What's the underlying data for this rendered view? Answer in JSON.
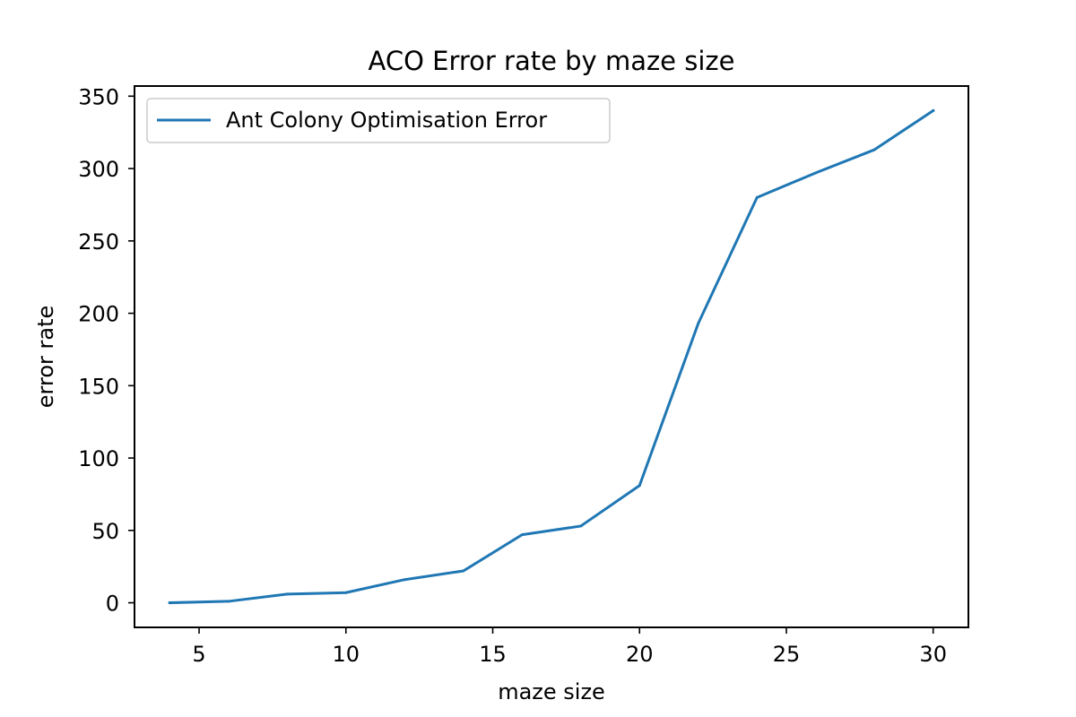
{
  "chart_data": {
    "type": "line",
    "title": "ACO Error rate by maze size",
    "xlabel": "maze size",
    "ylabel": "error rate",
    "xlim": [
      2.8,
      31.2
    ],
    "ylim": [
      -17,
      357
    ],
    "xticks": [
      5,
      10,
      15,
      20,
      25,
      30
    ],
    "yticks": [
      0,
      50,
      100,
      150,
      200,
      250,
      300,
      350
    ],
    "grid": false,
    "legend_position": "upper-left",
    "series": [
      {
        "name": "Ant Colony Optimisation Error",
        "color": "#1f77b4",
        "x": [
          4,
          6,
          8,
          10,
          12,
          14,
          16,
          18,
          20,
          22,
          24,
          26,
          28,
          30
        ],
        "y": [
          0,
          1,
          6,
          7,
          16,
          22,
          47,
          53,
          81,
          193,
          280,
          297,
          313,
          340
        ]
      }
    ]
  }
}
